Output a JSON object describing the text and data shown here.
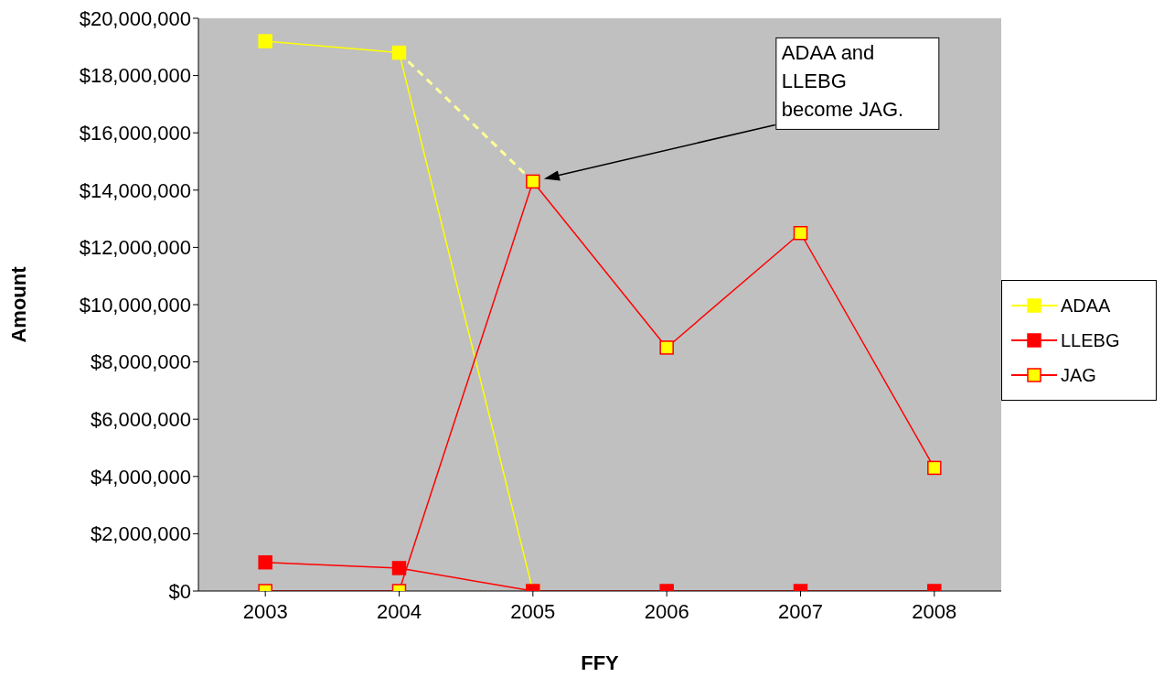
{
  "chart_data": {
    "type": "line",
    "xlabel": "FFY",
    "ylabel": "Amount",
    "categories": [
      "2003",
      "2004",
      "2005",
      "2006",
      "2007",
      "2008"
    ],
    "series": [
      {
        "name": "ADAA",
        "color": "#ffff00",
        "values": [
          19200000,
          18800000,
          0,
          null,
          null,
          null
        ]
      },
      {
        "name": "LLEBG",
        "color": "#ff0000",
        "values": [
          1000000,
          800000,
          0,
          0,
          0,
          0
        ]
      },
      {
        "name": "JAG",
        "color": "#ff0000",
        "values": [
          0,
          0,
          14300000,
          8500000,
          12500000,
          4300000
        ]
      },
      {
        "type": "line",
        "color": "#ffff99",
        "line_style": "dashed",
        "marker": "none",
        "values": [
          null,
          18800000,
          14300000,
          null,
          null,
          null
        ]
      }
    ],
    "ylim": [
      0,
      20000000
    ],
    "yticks": [
      {
        "value": 0,
        "label": "$0"
      },
      {
        "value": 2000000,
        "label": "$2,000,000"
      },
      {
        "value": 4000000,
        "label": "$4,000,000"
      },
      {
        "value": 6000000,
        "label": "$6,000,000"
      },
      {
        "value": 8000000,
        "label": "$8,000,000"
      },
      {
        "value": 10000000,
        "label": "$10,000,000"
      },
      {
        "value": 12000000,
        "label": "$12,000,000"
      },
      {
        "value": 14000000,
        "label": "$14,000,000"
      },
      {
        "value": 16000000,
        "label": "$16,000,000"
      },
      {
        "value": 18000000,
        "label": "$18,000,000"
      },
      {
        "value": 20000000,
        "label": "$20,000,000"
      }
    ],
    "annotations": [
      "ADAA and LLEBG become JAG."
    ],
    "marker": "square",
    "line_style": "solid",
    "grid": false,
    "legend": "right"
  }
}
